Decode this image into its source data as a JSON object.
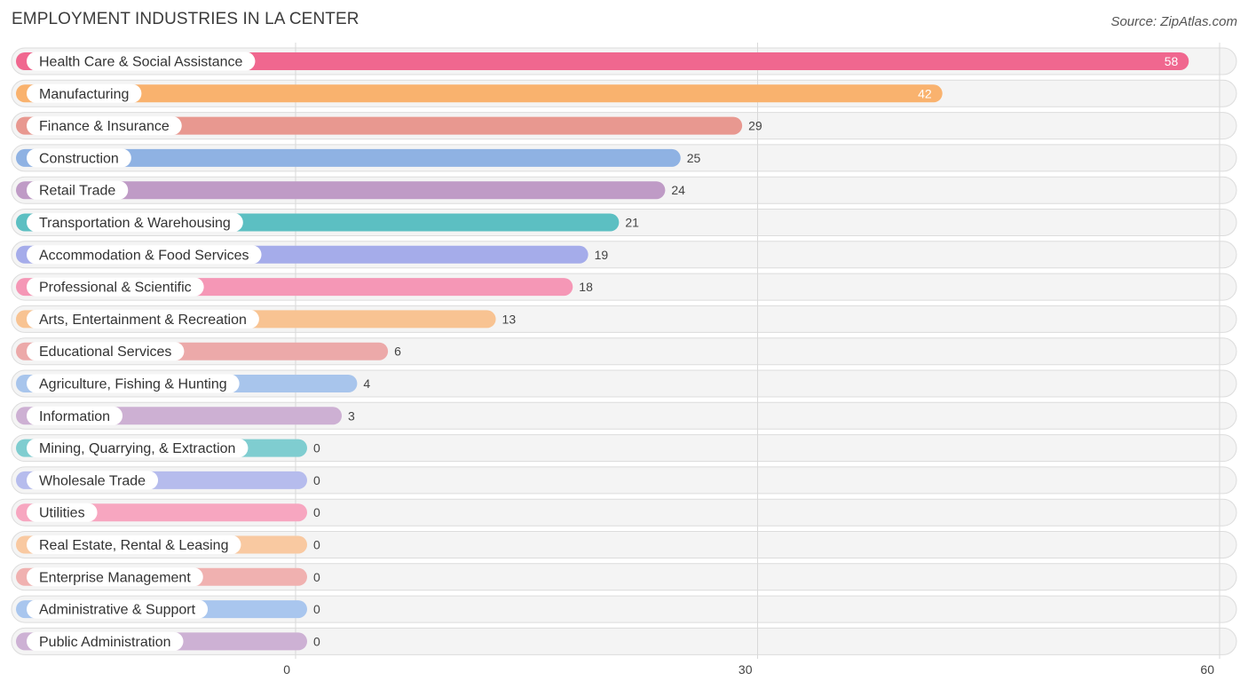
{
  "header": {
    "title": "EMPLOYMENT INDUSTRIES IN LA CENTER",
    "source": "Source: ZipAtlas.com"
  },
  "chart_data": {
    "type": "bar",
    "orientation": "horizontal",
    "title": "EMPLOYMENT INDUSTRIES IN LA CENTER",
    "xlabel": "",
    "ylabel": "",
    "xlim": [
      0,
      60
    ],
    "xticks": [
      0,
      30,
      60
    ],
    "grid": true,
    "legend": "none",
    "categories": [
      "Health Care & Social Assistance",
      "Manufacturing",
      "Finance & Insurance",
      "Construction",
      "Retail Trade",
      "Transportation & Warehousing",
      "Accommodation & Food Services",
      "Professional & Scientific",
      "Arts, Entertainment & Recreation",
      "Educational Services",
      "Agriculture, Fishing & Hunting",
      "Information",
      "Mining, Quarrying, & Extraction",
      "Wholesale Trade",
      "Utilities",
      "Real Estate, Rental & Leasing",
      "Enterprise Management",
      "Administrative & Support",
      "Public Administration"
    ],
    "values": [
      58,
      42,
      29,
      25,
      24,
      21,
      19,
      18,
      13,
      6,
      4,
      3,
      0,
      0,
      0,
      0,
      0,
      0,
      0
    ],
    "colors": [
      "#f0678f",
      "#f9b26e",
      "#e89890",
      "#8fb2e3",
      "#bf9bc6",
      "#5cbfc2",
      "#a5acea",
      "#f597b6",
      "#f8c392",
      "#eca9a9",
      "#a8c5ec",
      "#cdb0d3",
      "#7fcdd0",
      "#b6bced",
      "#f7a6c0",
      "#f9c9a1",
      "#f0b1b0",
      "#a9c6ee",
      "#cdb1d4"
    ],
    "value_label_inside": [
      true,
      true,
      false,
      false,
      false,
      false,
      false,
      false,
      false,
      false,
      false,
      false,
      false,
      false,
      false,
      false,
      false,
      false,
      false
    ]
  }
}
